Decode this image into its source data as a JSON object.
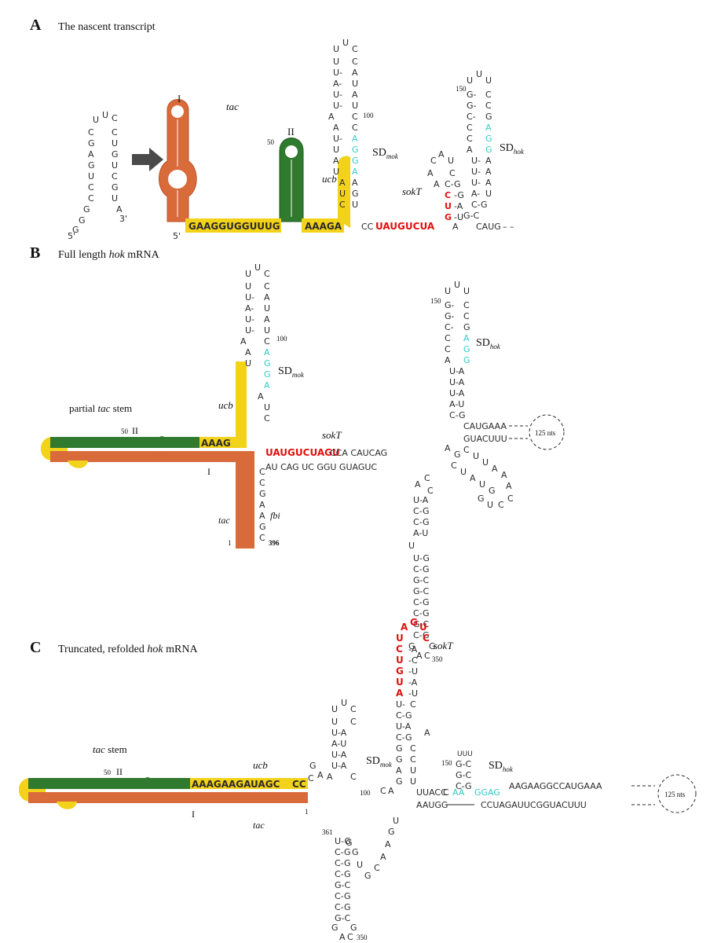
{
  "colors": {
    "tac_orange": "#d96a3a",
    "ucb_yellow": "#f3d21a",
    "stem_green": "#2f7a2f",
    "sokT_red": "#e01010",
    "sd_cyan": "#33c9c9",
    "arrow_gray": "#4a4a4a"
  },
  "panel_a": {
    "letter": "A",
    "title": "The nascent transcript",
    "tac": "tac",
    "stem1": "I",
    "stem2": "II",
    "ucb": "ucb",
    "sokT": "sokT",
    "sdmok": "SD",
    "sdmok_sub": "mok",
    "sdhok": "SD",
    "sdhok_sub": "hok",
    "num50": "50",
    "num100": "100",
    "num150": "150",
    "end5": "5'",
    "strand_yellow": "GAAGGUGGUUUG",
    "strand_yellow2": "AAAGA",
    "strand_red": "UAUGUCUA",
    "tail": "CAUG",
    "hairpin_left": [
      "U",
      "U",
      "C",
      "C",
      "G",
      "A",
      "C",
      "C"
    ],
    "hairpin_right": [
      "C",
      "U",
      "G",
      "G",
      "C",
      "U",
      "A",
      "3'"
    ],
    "stem_mok_left": [
      "U",
      "U",
      "A",
      "A",
      "U",
      "U",
      "A",
      "A",
      "U",
      "U"
    ],
    "stem_mok_right": [
      "C",
      "A",
      "U",
      "A",
      "U",
      "U",
      "A",
      "C",
      "A",
      "C"
    ]
  },
  "panel_b": {
    "letter": "B",
    "title": "Full length hok mRNA",
    "title_a": "Full length ",
    "title_b": "hok",
    "title_c": " mRNA",
    "partial": "partial ",
    "partial_tac": "tac",
    "partial_stem": " stem",
    "ucb": "ucb",
    "sokT": "sokT",
    "stem1": "I",
    "stem2": "II",
    "num50": "50",
    "num100": "100",
    "num150": "150",
    "num350": "350",
    "num1": "1",
    "num396": "396",
    "tac": "tac",
    "fbi": "fbi",
    "sdmok": "SD",
    "sdmok_sub": "mok",
    "sdhok": "SD",
    "sdhok_sub": "hok",
    "loop_label": "125 nts",
    "red_top": "UAUGUCUAGU",
    "top_seq": "CCA CAUCAG",
    "bottom_seq": "AU CAG  UC GGU GUAGUC",
    "right_top": "CAUGAAA",
    "right_bottom": "GUACUUU",
    "stem_yellow": "AAAG"
  },
  "panel_c": {
    "letter": "C",
    "title_a": "Truncated, refolded ",
    "title_b": "hok",
    "title_c": " mRNA",
    "tac_stem_a": "tac",
    "tac_stem_b": " stem",
    "ucb": "ucb",
    "sokT": "sokT",
    "stem1": "I",
    "stem2": "II",
    "num50": "50",
    "num100": "100",
    "num150": "150",
    "num350": "350",
    "num361": "361",
    "num1": "1",
    "tac": "tac",
    "sdmok": "SD",
    "sdmok_sub": "mok",
    "sdhok": "SD",
    "sdhok_sub": "hok",
    "loop_label": "125 nts",
    "red_loop": "UAGUCUGUAU",
    "top_right": "AAGAAGGCCAUGAAA",
    "bottom_right": "CCUAGAUUCGGUACUUU",
    "mid_top": "UUACC",
    "mid_bottom": "AAUGG",
    "yellow_top": "AAAGAAGAUAGC",
    "yellow_bottom": "CC"
  }
}
